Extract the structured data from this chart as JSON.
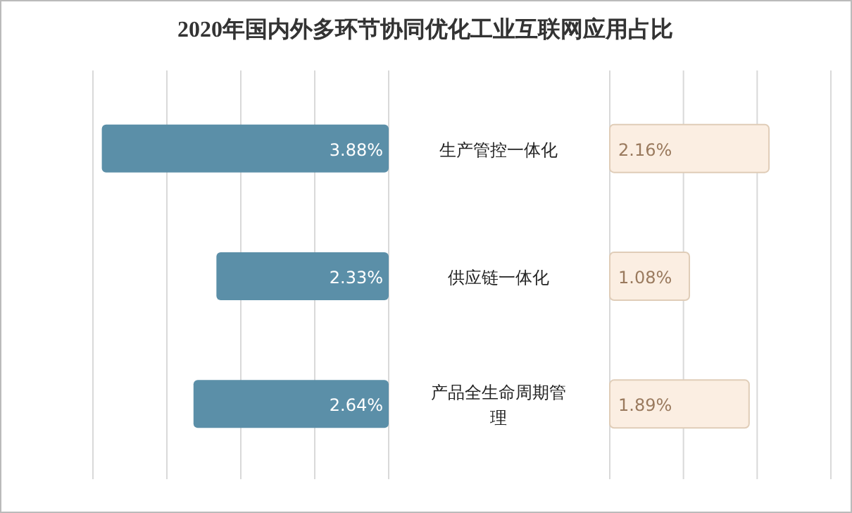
{
  "chart_data": [
    {
      "type": "bar",
      "orientation": "horizontal",
      "title": "2020年国内外多环节协同优化工业互联网应用占比",
      "categories": [
        "生产管控一体化",
        "供应链一体化",
        "产品全生命周期管理"
      ],
      "values": [
        3.88,
        2.33,
        2.64
      ],
      "color": "#5b8fa8",
      "value_labels": [
        "3.88%",
        "2.33%",
        "2.64%"
      ],
      "xlim": [
        4,
        0
      ],
      "xticks": [
        {
          "value": 4,
          "label": null
        },
        {
          "value": 3,
          "label": null
        },
        {
          "value": 2,
          "label": null
        },
        {
          "value": 1,
          "label": null
        },
        {
          "value": 0,
          "label": null
        }
      ],
      "grid": "x",
      "tick_labels": "y"
    },
    {
      "type": "bar",
      "orientation": "horizontal",
      "categories": [
        null,
        null,
        null
      ],
      "values": [
        2.16,
        1.08,
        1.89
      ],
      "color": "#fbeee2",
      "value_labels": [
        "2.16%",
        "1.08%",
        "1.89%"
      ],
      "xlim": [
        0,
        3
      ],
      "xticks": [
        {
          "value": 0,
          "label": null
        },
        {
          "value": 1,
          "label": null
        },
        {
          "value": 2,
          "label": null
        },
        {
          "value": 3,
          "label": null
        }
      ],
      "grid": "x",
      "tick_labels": false
    }
  ]
}
